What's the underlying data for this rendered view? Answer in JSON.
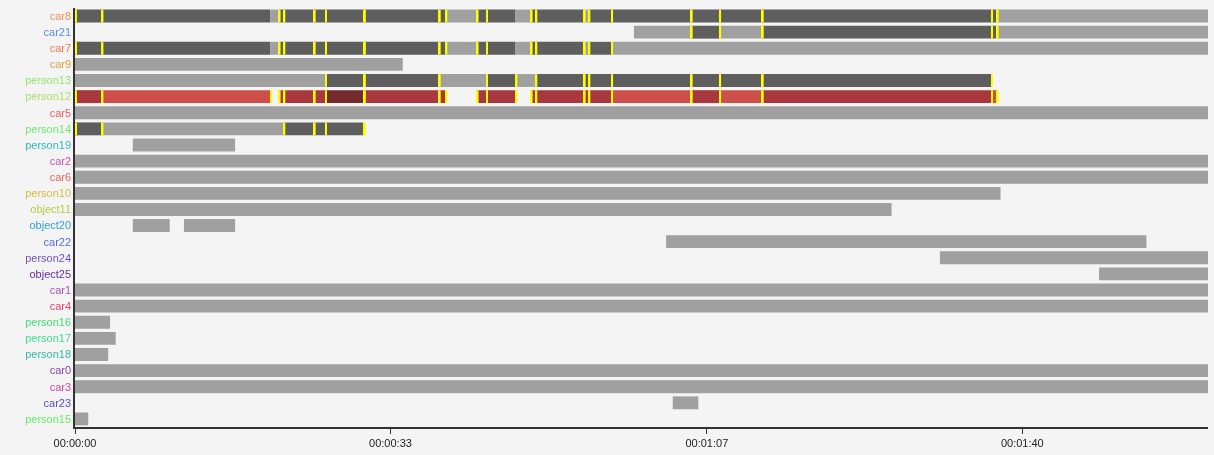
{
  "chart_data": {
    "type": "bar",
    "orientation": "horizontal",
    "categories": [
      "car8",
      "car21",
      "car7",
      "car9",
      "person13",
      "person12",
      "car5",
      "person14",
      "person19",
      "car2",
      "car6",
      "person10",
      "object11",
      "object20",
      "car22",
      "person24",
      "object25",
      "car1",
      "car4",
      "person16",
      "person17",
      "person18",
      "car0",
      "car3",
      "car23",
      "person15"
    ],
    "xlim": [
      0,
      119.6
    ],
    "xticks": [
      {
        "value": 0,
        "label": "00:00:00"
      },
      {
        "value": 33.3,
        "label": "00:00:33"
      },
      {
        "value": 66.7,
        "label": "00:01:07"
      },
      {
        "value": 100,
        "label": "00:01:40"
      }
    ],
    "series": [
      {
        "base": [
          0,
          59.0,
          0,
          0,
          0,
          0,
          0,
          0,
          6.1,
          0,
          0,
          0,
          0,
          6.1,
          62.4,
          91.3,
          108.1,
          0,
          0,
          0,
          0,
          0,
          0,
          0,
          63.1,
          0
        ],
        "values": [
          20.6,
          6.1,
          20.6,
          34.6,
          26.4,
          2.8,
          119.6,
          2.8,
          10.8,
          119.6,
          119.6,
          97.7,
          86.2,
          3.9,
          50.7,
          28.3,
          11.5,
          119.6,
          119.6,
          3.7,
          4.3,
          3.5,
          119.6,
          119.6,
          2.7,
          1.4
        ],
        "colors": [
          "#5e5e5e",
          "#a0a0a0",
          "#5e5e5e",
          "#a0a0a0",
          "#a0a0a0",
          "#a8383e",
          "#a0a0a0",
          "#5e5e5e",
          "#a0a0a0",
          "#a0a0a0",
          "#a0a0a0",
          "#a0a0a0",
          "#a0a0a0",
          "#a0a0a0",
          "#a0a0a0",
          "#a0a0a0",
          "#a0a0a0",
          "#a0a0a0",
          "#a0a0a0",
          "#a0a0a0",
          "#a0a0a0",
          "#a0a0a0",
          "#a0a0a0",
          "#a0a0a0",
          "#a0a0a0",
          "#a0a0a0"
        ]
      },
      {
        "base": [
          20.6,
          65.0,
          20.6,
          null,
          26.4,
          2.8,
          null,
          2.8,
          null,
          null,
          null,
          null,
          null,
          11.5,
          null,
          null,
          null,
          null,
          null,
          null,
          null,
          null,
          null,
          null,
          null,
          null
        ],
        "values": [
          0.9,
          3.0,
          0.9,
          null,
          12.0,
          17.8,
          null,
          19.2,
          null,
          null,
          null,
          null,
          null,
          5.4,
          null,
          null,
          null,
          null,
          null,
          null,
          null,
          null,
          null,
          null,
          null,
          null
        ],
        "colors": [
          "#a0a0a0",
          "#5e5e5e",
          "#a0a0a0",
          null,
          "#5e5e5e",
          "#cc5049",
          null,
          "#a0a0a0",
          null,
          null,
          null,
          null,
          null,
          "#a0a0a0",
          null,
          null,
          null,
          null,
          null,
          null,
          null,
          null,
          null,
          null,
          null,
          null
        ]
      },
      {
        "base": [
          21.5,
          68.0,
          21.5,
          null,
          38.4,
          21.5,
          null,
          22.0,
          null,
          null,
          null,
          null,
          null,
          null,
          null,
          null,
          null,
          null,
          null,
          null,
          null,
          null,
          null,
          null,
          null,
          null
        ],
        "values": [
          17.6,
          4.5,
          17.6,
          null,
          5.0,
          4.9,
          null,
          8.5,
          null,
          null,
          null,
          null,
          null,
          null,
          null,
          null,
          null,
          null,
          null,
          null,
          null,
          null,
          null,
          null,
          null,
          null
        ],
        "colors": [
          "#5e5e5e",
          "#a0a0a0",
          "#5e5e5e",
          null,
          "#a0a0a0",
          "#a8383e",
          null,
          "#5e5e5e",
          null,
          null,
          null,
          null,
          null,
          null,
          null,
          null,
          null,
          null,
          null,
          null,
          null,
          null,
          null,
          null,
          null,
          null
        ]
      },
      {
        "base": [
          39.1,
          72.5,
          39.1,
          null,
          43.4,
          26.4,
          null,
          null,
          null,
          null,
          null,
          null,
          null,
          null,
          null,
          null,
          null,
          null,
          null,
          null,
          null,
          null,
          null,
          null,
          null,
          null
        ],
        "values": [
          3.3,
          24.8,
          3.3,
          null,
          3.1,
          4.1,
          null,
          null,
          null,
          null,
          null,
          null,
          null,
          null,
          null,
          null,
          null,
          null,
          null,
          null,
          null,
          null,
          null,
          null,
          null,
          null
        ],
        "colors": [
          "#a0a0a0",
          "#5e5e5e",
          "#a0a0a0",
          null,
          "#5e5e5e",
          "#742a2d",
          null,
          null,
          null,
          null,
          null,
          null,
          null,
          null,
          null,
          null,
          null,
          null,
          null,
          null,
          null,
          null,
          null,
          null,
          null,
          null
        ]
      },
      {
        "base": [
          42.4,
          97.3,
          42.4,
          null,
          46.5,
          30.5,
          null,
          null,
          null,
          null,
          null,
          null,
          null,
          null,
          null,
          null,
          null,
          null,
          null,
          null,
          null,
          null,
          null,
          null,
          null,
          null
        ],
        "values": [
          4.1,
          22.3,
          4.1,
          null,
          2.1,
          8.6,
          null,
          null,
          null,
          null,
          null,
          null,
          null,
          null,
          null,
          null,
          null,
          null,
          null,
          null,
          null,
          null,
          null,
          null,
          null,
          null
        ],
        "colors": [
          "#5e5e5e",
          "#a0a0a0",
          "#5e5e5e",
          null,
          "#a0a0a0",
          "#a8383e",
          null,
          null,
          null,
          null,
          null,
          null,
          null,
          null,
          null,
          null,
          null,
          null,
          null,
          null,
          null,
          null,
          null,
          null,
          null,
          null
        ]
      },
      {
        "base": [
          46.5,
          null,
          46.5,
          null,
          48.6,
          42.4,
          null,
          null,
          null,
          null,
          null,
          null,
          null,
          null,
          null,
          null,
          null,
          null,
          null,
          null,
          null,
          null,
          null,
          null,
          null,
          null
        ],
        "values": [
          1.6,
          null,
          1.6,
          null,
          48.1,
          4.1,
          null,
          null,
          null,
          null,
          null,
          null,
          null,
          null,
          null,
          null,
          null,
          null,
          null,
          null,
          null,
          null,
          null,
          null,
          null,
          null
        ],
        "colors": [
          "#a0a0a0",
          null,
          "#a0a0a0",
          null,
          "#5e5e5e",
          "#a8383e",
          null,
          null,
          null,
          null,
          null,
          null,
          null,
          null,
          null,
          null,
          null,
          null,
          null,
          null,
          null,
          null,
          null,
          null,
          null,
          null
        ]
      },
      {
        "base": [
          48.1,
          null,
          48.1,
          null,
          null,
          48.1,
          null,
          null,
          null,
          null,
          null,
          null,
          null,
          null,
          null,
          null,
          null,
          null,
          null,
          null,
          null,
          null,
          null,
          null,
          null,
          null
        ],
        "values": [
          5.6,
          null,
          5.6,
          null,
          null,
          8.5,
          null,
          null,
          null,
          null,
          null,
          null,
          null,
          null,
          null,
          null,
          null,
          null,
          null,
          null,
          null,
          null,
          null,
          null,
          null,
          null
        ],
        "colors": [
          "#5e5e5e",
          null,
          "#5e5e5e",
          null,
          null,
          "#a8383e",
          null,
          null,
          null,
          null,
          null,
          null,
          null,
          null,
          null,
          null,
          null,
          null,
          null,
          null,
          null,
          null,
          null,
          null,
          null,
          null
        ]
      },
      {
        "base": [
          53.7,
          null,
          53.7,
          null,
          null,
          56.6,
          null,
          null,
          null,
          null,
          null,
          null,
          null,
          null,
          null,
          null,
          null,
          null,
          null,
          null,
          null,
          null,
          null,
          null,
          null,
          null
        ],
        "values": [
          0.5,
          null,
          0.5,
          null,
          null,
          8.4,
          null,
          null,
          null,
          null,
          null,
          null,
          null,
          null,
          null,
          null,
          null,
          null,
          null,
          null,
          null,
          null,
          null,
          null,
          null,
          null
        ],
        "colors": [
          "#a0a0a0",
          null,
          "#a0a0a0",
          null,
          null,
          "#cc5049",
          null,
          null,
          null,
          null,
          null,
          null,
          null,
          null,
          null,
          null,
          null,
          null,
          null,
          null,
          null,
          null,
          null,
          null,
          null,
          null
        ]
      },
      {
        "base": [
          54.2,
          null,
          54.2,
          null,
          null,
          65.0,
          null,
          null,
          null,
          null,
          null,
          null,
          null,
          null,
          null,
          null,
          null,
          null,
          null,
          null,
          null,
          null,
          null,
          null,
          null,
          null
        ],
        "values": [
          43.1,
          null,
          2.4,
          null,
          null,
          3.0,
          null,
          null,
          null,
          null,
          null,
          null,
          null,
          null,
          null,
          null,
          null,
          null,
          null,
          null,
          null,
          null,
          null,
          null,
          null,
          null
        ],
        "colors": [
          "#5e5e5e",
          null,
          "#5e5e5e",
          null,
          null,
          "#a8383e",
          null,
          null,
          null,
          null,
          null,
          null,
          null,
          null,
          null,
          null,
          null,
          null,
          null,
          null,
          null,
          null,
          null,
          null,
          null,
          null
        ]
      },
      {
        "base": [
          97.3,
          null,
          56.6,
          null,
          null,
          68.0,
          null,
          null,
          null,
          null,
          null,
          null,
          null,
          null,
          null,
          null,
          null,
          null,
          null,
          null,
          null,
          null,
          null,
          null,
          null,
          null
        ],
        "values": [
          22.3,
          null,
          63.0,
          null,
          null,
          4.5,
          null,
          null,
          null,
          null,
          null,
          null,
          null,
          null,
          null,
          null,
          null,
          null,
          null,
          null,
          null,
          null,
          null,
          null,
          null,
          null
        ],
        "colors": [
          "#a0a0a0",
          null,
          "#a0a0a0",
          null,
          null,
          "#cc5049",
          null,
          null,
          null,
          null,
          null,
          null,
          null,
          null,
          null,
          null,
          null,
          null,
          null,
          null,
          null,
          null,
          null,
          null,
          null,
          null
        ]
      },
      {
        "base": [
          null,
          null,
          null,
          null,
          null,
          72.5,
          null,
          null,
          null,
          null,
          null,
          null,
          null,
          null,
          null,
          null,
          null,
          null,
          null,
          null,
          null,
          null,
          null,
          null,
          null,
          null
        ],
        "values": [
          null,
          null,
          null,
          null,
          null,
          24.2,
          null,
          null,
          null,
          null,
          null,
          null,
          null,
          null,
          null,
          null,
          null,
          null,
          null,
          null,
          null,
          null,
          null,
          null,
          null,
          null
        ],
        "colors": [
          null,
          null,
          null,
          null,
          null,
          "#a8383e",
          null,
          null,
          null,
          null,
          null,
          null,
          null,
          null,
          null,
          null,
          null,
          null,
          null,
          null,
          null,
          null,
          null,
          null,
          null,
          null
        ]
      },
      {
        "base": [
          null,
          null,
          null,
          null,
          null,
          96.7,
          null,
          null,
          null,
          null,
          null,
          null,
          null,
          null,
          null,
          null,
          null,
          null,
          null,
          null,
          null,
          null,
          null,
          null,
          null,
          null
        ],
        "values": [
          null,
          null,
          null,
          null,
          null,
          0.6,
          null,
          null,
          null,
          null,
          null,
          null,
          null,
          null,
          null,
          null,
          null,
          null,
          null,
          null,
          null,
          null,
          null,
          null,
          null,
          null
        ],
        "colors": [
          null,
          null,
          null,
          null,
          null,
          "#cc5049",
          null,
          null,
          null,
          null,
          null,
          null,
          null,
          null,
          null,
          null,
          null,
          null,
          null,
          null,
          null,
          null,
          null,
          null,
          null,
          null
        ]
      },
      {
        "color": "#ffff00",
        "base": [
          0,
          65.0,
          0,
          null,
          26.4,
          0,
          null,
          0,
          null,
          null,
          null,
          null,
          null,
          null,
          null,
          null,
          null,
          null,
          null,
          null,
          null,
          null,
          null,
          null,
          null,
          null
        ],
        "values": [
          0.2,
          0.2,
          0.2,
          null,
          0.2,
          0.2,
          null,
          0.2,
          null,
          null,
          null,
          null,
          null,
          null,
          null,
          null,
          null,
          null,
          null,
          null,
          null,
          null,
          null,
          null,
          null,
          null
        ]
      },
      {
        "color": "#ffff00",
        "base": [
          2.8,
          68.0,
          2.8,
          null,
          30.5,
          2.8,
          null,
          2.8,
          null,
          null,
          null,
          null,
          null,
          null,
          null,
          null,
          null,
          null,
          null,
          null,
          null,
          null,
          null,
          null,
          null,
          null
        ],
        "values": [
          0.2,
          0.2,
          0.2,
          null,
          0.2,
          0.2,
          null,
          0.2,
          null,
          null,
          null,
          null,
          null,
          null,
          null,
          null,
          null,
          null,
          null,
          null,
          null,
          null,
          null,
          null,
          null,
          null
        ]
      },
      {
        "color": "#ffff00",
        "base": [
          21.5,
          72.5,
          21.5,
          null,
          38.4,
          20.6,
          null,
          22.0,
          null,
          null,
          null,
          null,
          null,
          null,
          null,
          null,
          null,
          null,
          null,
          null,
          null,
          null,
          null,
          null,
          null,
          null
        ],
        "values": [
          0.2,
          0.2,
          0.2,
          null,
          0.2,
          0.2,
          null,
          0.2,
          null,
          null,
          null,
          null,
          null,
          null,
          null,
          null,
          null,
          null,
          null,
          null,
          null,
          null,
          null,
          null,
          null,
          null
        ]
      },
      {
        "color": "#ffff00",
        "base": [
          22.0,
          96.7,
          22.0,
          null,
          43.4,
          21.5,
          null,
          25.2,
          null,
          null,
          null,
          null,
          null,
          null,
          null,
          null,
          null,
          null,
          null,
          null,
          null,
          null,
          null,
          null,
          null,
          null
        ],
        "values": [
          0.2,
          0.2,
          0.2,
          null,
          0.2,
          0.2,
          null,
          0.2,
          null,
          null,
          null,
          null,
          null,
          null,
          null,
          null,
          null,
          null,
          null,
          null,
          null,
          null,
          null,
          null,
          null,
          null
        ]
      },
      {
        "color": "#ffff00",
        "base": [
          25.2,
          97.3,
          25.2,
          null,
          46.5,
          22.0,
          null,
          26.4,
          null,
          null,
          null,
          null,
          null,
          null,
          null,
          null,
          null,
          null,
          null,
          null,
          null,
          null,
          null,
          null,
          null,
          null
        ],
        "values": [
          0.2,
          0.2,
          0.2,
          null,
          0.2,
          0.2,
          null,
          0.2,
          null,
          null,
          null,
          null,
          null,
          null,
          null,
          null,
          null,
          null,
          null,
          null,
          null,
          null,
          null,
          null,
          null,
          null
        ]
      },
      {
        "color": "#ffff00",
        "base": [
          26.4,
          null,
          26.4,
          null,
          48.6,
          25.2,
          null,
          30.5,
          null,
          null,
          null,
          null,
          null,
          null,
          null,
          null,
          null,
          null,
          null,
          null,
          null,
          null,
          null,
          null,
          null,
          null
        ],
        "values": [
          0.2,
          null,
          0.2,
          null,
          0.2,
          0.2,
          null,
          0.2,
          null,
          null,
          null,
          null,
          null,
          null,
          null,
          null,
          null,
          null,
          null,
          null,
          null,
          null,
          null,
          null,
          null,
          null
        ]
      },
      {
        "color": "#ffff00",
        "base": [
          30.5,
          null,
          30.5,
          null,
          53.7,
          26.4,
          null,
          null,
          null,
          null,
          null,
          null,
          null,
          null,
          null,
          null,
          null,
          null,
          null,
          null,
          null,
          null,
          null,
          null,
          null,
          null
        ],
        "values": [
          0.2,
          null,
          0.2,
          null,
          0.2,
          0.2,
          null,
          null,
          null,
          null,
          null,
          null,
          null,
          null,
          null,
          null,
          null,
          null,
          null,
          null,
          null,
          null,
          null,
          null,
          null,
          null
        ]
      },
      {
        "color": "#ffff00",
        "base": [
          38.4,
          null,
          38.4,
          null,
          54.2,
          30.5,
          null,
          null,
          null,
          null,
          null,
          null,
          null,
          null,
          null,
          null,
          null,
          null,
          null,
          null,
          null,
          null,
          null,
          null,
          null,
          null
        ],
        "values": [
          0.2,
          null,
          0.2,
          null,
          0.2,
          0.2,
          null,
          null,
          null,
          null,
          null,
          null,
          null,
          null,
          null,
          null,
          null,
          null,
          null,
          null,
          null,
          null,
          null,
          null,
          null,
          null
        ]
      },
      {
        "color": "#ffff00",
        "base": [
          39.1,
          null,
          39.1,
          null,
          56.6,
          38.4,
          null,
          null,
          null,
          null,
          null,
          null,
          null,
          null,
          null,
          null,
          null,
          null,
          null,
          null,
          null,
          null,
          null,
          null,
          null,
          null
        ],
        "values": [
          0.2,
          null,
          0.2,
          null,
          0.2,
          0.2,
          null,
          null,
          null,
          null,
          null,
          null,
          null,
          null,
          null,
          null,
          null,
          null,
          null,
          null,
          null,
          null,
          null,
          null,
          null,
          null
        ]
      },
      {
        "color": "#ffff00",
        "base": [
          42.4,
          null,
          42.4,
          null,
          65.0,
          39.1,
          null,
          null,
          null,
          null,
          null,
          null,
          null,
          null,
          null,
          null,
          null,
          null,
          null,
          null,
          null,
          null,
          null,
          null,
          null,
          null
        ],
        "values": [
          0.2,
          null,
          0.2,
          null,
          0.2,
          0.2,
          null,
          null,
          null,
          null,
          null,
          null,
          null,
          null,
          null,
          null,
          null,
          null,
          null,
          null,
          null,
          null,
          null,
          null,
          null,
          null
        ]
      },
      {
        "color": "#ffff00",
        "base": [
          43.4,
          null,
          43.4,
          null,
          68.0,
          42.4,
          null,
          null,
          null,
          null,
          null,
          null,
          null,
          null,
          null,
          null,
          null,
          null,
          null,
          null,
          null,
          null,
          null,
          null,
          null,
          null
        ],
        "values": [
          0.2,
          null,
          0.2,
          null,
          0.2,
          0.2,
          null,
          null,
          null,
          null,
          null,
          null,
          null,
          null,
          null,
          null,
          null,
          null,
          null,
          null,
          null,
          null,
          null,
          null,
          null,
          null
        ]
      },
      {
        "color": "#ffff00",
        "base": [
          48.1,
          null,
          48.1,
          null,
          72.5,
          43.4,
          null,
          null,
          null,
          null,
          null,
          null,
          null,
          null,
          null,
          null,
          null,
          null,
          null,
          null,
          null,
          null,
          null,
          null,
          null,
          null
        ],
        "values": [
          0.2,
          null,
          0.2,
          null,
          0.2,
          0.2,
          null,
          null,
          null,
          null,
          null,
          null,
          null,
          null,
          null,
          null,
          null,
          null,
          null,
          null,
          null,
          null,
          null,
          null,
          null,
          null
        ]
      },
      {
        "color": "#ffff00",
        "base": [
          48.6,
          null,
          48.6,
          null,
          96.7,
          46.5,
          null,
          null,
          null,
          null,
          null,
          null,
          null,
          null,
          null,
          null,
          null,
          null,
          null,
          null,
          null,
          null,
          null,
          null,
          null,
          null
        ],
        "values": [
          0.2,
          null,
          0.2,
          null,
          0.2,
          0.2,
          null,
          null,
          null,
          null,
          null,
          null,
          null,
          null,
          null,
          null,
          null,
          null,
          null,
          null,
          null,
          null,
          null,
          null,
          null,
          null
        ]
      },
      {
        "color": "#ffff00",
        "base": [
          53.7,
          null,
          53.7,
          null,
          null,
          48.1,
          null,
          null,
          null,
          null,
          null,
          null,
          null,
          null,
          null,
          null,
          null,
          null,
          null,
          null,
          null,
          null,
          null,
          null,
          null,
          null
        ],
        "values": [
          0.2,
          null,
          0.2,
          null,
          null,
          0.2,
          null,
          null,
          null,
          null,
          null,
          null,
          null,
          null,
          null,
          null,
          null,
          null,
          null,
          null,
          null,
          null,
          null,
          null,
          null,
          null
        ]
      },
      {
        "color": "#ffff00",
        "base": [
          54.2,
          null,
          54.2,
          null,
          null,
          48.6,
          null,
          null,
          null,
          null,
          null,
          null,
          null,
          null,
          null,
          null,
          null,
          null,
          null,
          null,
          null,
          null,
          null,
          null,
          null,
          null
        ],
        "values": [
          0.2,
          null,
          0.2,
          null,
          null,
          0.2,
          null,
          null,
          null,
          null,
          null,
          null,
          null,
          null,
          null,
          null,
          null,
          null,
          null,
          null,
          null,
          null,
          null,
          null,
          null,
          null
        ]
      },
      {
        "color": "#ffff00",
        "base": [
          56.6,
          null,
          56.6,
          null,
          null,
          53.7,
          null,
          null,
          null,
          null,
          null,
          null,
          null,
          null,
          null,
          null,
          null,
          null,
          null,
          null,
          null,
          null,
          null,
          null,
          null,
          null
        ],
        "values": [
          0.2,
          null,
          0.2,
          null,
          null,
          0.2,
          null,
          null,
          null,
          null,
          null,
          null,
          null,
          null,
          null,
          null,
          null,
          null,
          null,
          null,
          null,
          null,
          null,
          null,
          null,
          null
        ]
      },
      {
        "color": "#ffff00",
        "base": [
          65.0,
          null,
          null,
          null,
          null,
          54.2,
          null,
          null,
          null,
          null,
          null,
          null,
          null,
          null,
          null,
          null,
          null,
          null,
          null,
          null,
          null,
          null,
          null,
          null,
          null,
          null
        ],
        "values": [
          0.2,
          null,
          null,
          null,
          null,
          0.2,
          null,
          null,
          null,
          null,
          null,
          null,
          null,
          null,
          null,
          null,
          null,
          null,
          null,
          null,
          null,
          null,
          null,
          null,
          null,
          null
        ]
      },
      {
        "color": "#ffff00",
        "base": [
          68.0,
          null,
          null,
          null,
          null,
          56.6,
          null,
          null,
          null,
          null,
          null,
          null,
          null,
          null,
          null,
          null,
          null,
          null,
          null,
          null,
          null,
          null,
          null,
          null,
          null,
          null
        ],
        "values": [
          0.2,
          null,
          null,
          null,
          null,
          0.2,
          null,
          null,
          null,
          null,
          null,
          null,
          null,
          null,
          null,
          null,
          null,
          null,
          null,
          null,
          null,
          null,
          null,
          null,
          null,
          null
        ]
      },
      {
        "color": "#ffff00",
        "base": [
          72.5,
          null,
          null,
          null,
          null,
          65.0,
          null,
          null,
          null,
          null,
          null,
          null,
          null,
          null,
          null,
          null,
          null,
          null,
          null,
          null,
          null,
          null,
          null,
          null,
          null,
          null
        ],
        "values": [
          0.2,
          null,
          null,
          null,
          null,
          0.2,
          null,
          null,
          null,
          null,
          null,
          null,
          null,
          null,
          null,
          null,
          null,
          null,
          null,
          null,
          null,
          null,
          null,
          null,
          null,
          null
        ]
      },
      {
        "color": "#ffff00",
        "base": [
          96.7,
          null,
          null,
          null,
          null,
          68.0,
          null,
          null,
          null,
          null,
          null,
          null,
          null,
          null,
          null,
          null,
          null,
          null,
          null,
          null,
          null,
          null,
          null,
          null,
          null,
          null
        ],
        "values": [
          0.2,
          null,
          null,
          null,
          null,
          0.2,
          null,
          null,
          null,
          null,
          null,
          null,
          null,
          null,
          null,
          null,
          null,
          null,
          null,
          null,
          null,
          null,
          null,
          null,
          null,
          null
        ]
      },
      {
        "color": "#ffff00",
        "base": [
          97.3,
          null,
          null,
          null,
          null,
          72.5,
          null,
          null,
          null,
          null,
          null,
          null,
          null,
          null,
          null,
          null,
          null,
          null,
          null,
          null,
          null,
          null,
          null,
          null,
          null,
          null
        ],
        "values": [
          0.2,
          null,
          null,
          null,
          null,
          0.2,
          null,
          null,
          null,
          null,
          null,
          null,
          null,
          null,
          null,
          null,
          null,
          null,
          null,
          null,
          null,
          null,
          null,
          null,
          null,
          null
        ]
      },
      {
        "color": "#ffff00",
        "base": [
          null,
          null,
          null,
          null,
          null,
          96.7,
          null,
          null,
          null,
          null,
          null,
          null,
          null,
          null,
          null,
          null,
          null,
          null,
          null,
          null,
          null,
          null,
          null,
          null,
          null,
          null
        ],
        "values": [
          null,
          null,
          null,
          null,
          null,
          0.2,
          null,
          null,
          null,
          null,
          null,
          null,
          null,
          null,
          null,
          null,
          null,
          null,
          null,
          null,
          null,
          null,
          null,
          null,
          null,
          null
        ]
      },
      {
        "color": "#ffff00",
        "base": [
          null,
          null,
          null,
          null,
          null,
          97.3,
          null,
          null,
          null,
          null,
          null,
          null,
          null,
          null,
          null,
          null,
          null,
          null,
          null,
          null,
          null,
          null,
          null,
          null,
          null,
          null
        ],
        "values": [
          null,
          null,
          null,
          null,
          null,
          0.2,
          null,
          null,
          null,
          null,
          null,
          null,
          null,
          null,
          null,
          null,
          null,
          null,
          null,
          null,
          null,
          null,
          null,
          null,
          null,
          null
        ]
      }
    ]
  }
}
